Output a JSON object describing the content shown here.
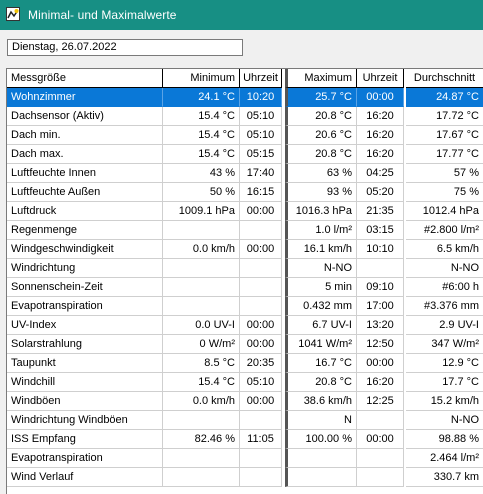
{
  "window": {
    "title": "Minimal- und Maximalwerte",
    "icon": "weather-station-icon"
  },
  "date_field": "Dienstag, 26.07.2022",
  "columns": [
    "Messgröße",
    "Minimum",
    "Uhrzeit",
    "Maximum",
    "Uhrzeit",
    "Durchschnitt"
  ],
  "rows": [
    [
      "Wohnzimmer",
      "24.1 °C",
      "10:20",
      "25.7 °C",
      "00:00",
      "24.87 °C"
    ],
    [
      "Dachsensor (Aktiv)",
      "15.4 °C",
      "05:10",
      "20.8 °C",
      "16:20",
      "17.72 °C"
    ],
    [
      "Dach min.",
      "15.4 °C",
      "05:10",
      "20.6 °C",
      "16:20",
      "17.67 °C"
    ],
    [
      "Dach max.",
      "15.4 °C",
      "05:15",
      "20.8 °C",
      "16:20",
      "17.77 °C"
    ],
    [
      "Luftfeuchte Innen",
      "43 %",
      "17:40",
      "63 %",
      "04:25",
      "57 %"
    ],
    [
      "Luftfeuchte Außen",
      "50 %",
      "16:15",
      "93 %",
      "05:20",
      "75 %"
    ],
    [
      "Luftdruck",
      "1009.1 hPa",
      "00:00",
      "1016.3 hPa",
      "21:35",
      "1012.4 hPa"
    ],
    [
      "Regenmenge",
      "",
      "",
      "1.0 l/m²",
      "03:15",
      "#2.800 l/m²"
    ],
    [
      "Windgeschwindigkeit",
      "0.0 km/h",
      "00:00",
      "16.1 km/h",
      "10:10",
      "6.5 km/h"
    ],
    [
      "Windrichtung",
      "",
      "",
      "N-NO",
      "",
      "N-NO"
    ],
    [
      "Sonnenschein-Zeit",
      "",
      "",
      "5 min",
      "09:10",
      "#6:00 h"
    ],
    [
      "Evapotranspiration",
      "",
      "",
      "0.432 mm",
      "17:00",
      "#3.376 mm"
    ],
    [
      "UV-Index",
      "0.0 UV-I",
      "00:00",
      "6.7 UV-I",
      "13:20",
      "2.9 UV-I"
    ],
    [
      "Solarstrahlung",
      "0 W/m²",
      "00:00",
      "1041 W/m²",
      "12:50",
      "347 W/m²"
    ],
    [
      "Taupunkt",
      "8.5 °C",
      "20:35",
      "16.7 °C",
      "00:00",
      "12.9 °C"
    ],
    [
      "Windchill",
      "15.4 °C",
      "05:10",
      "20.8 °C",
      "16:20",
      "17.7 °C"
    ],
    [
      "Windböen",
      "0.0 km/h",
      "00:00",
      "38.6 km/h",
      "12:25",
      "15.2 km/h"
    ],
    [
      "Windrichtung Windböen",
      "",
      "",
      "N",
      "",
      "N-NO"
    ],
    [
      "ISS Empfang",
      "82.46 %",
      "11:05",
      "100.00 %",
      "00:00",
      "98.88 %"
    ],
    [
      "Evapotranspiration",
      "",
      "",
      "",
      "",
      "2.464 l/m²"
    ],
    [
      "Wind Verlauf",
      "",
      "",
      "",
      "",
      "330.7 km"
    ]
  ],
  "selected_row": 0,
  "colors": {
    "titlebar": "#178f84",
    "selection": "#0a78d7"
  }
}
